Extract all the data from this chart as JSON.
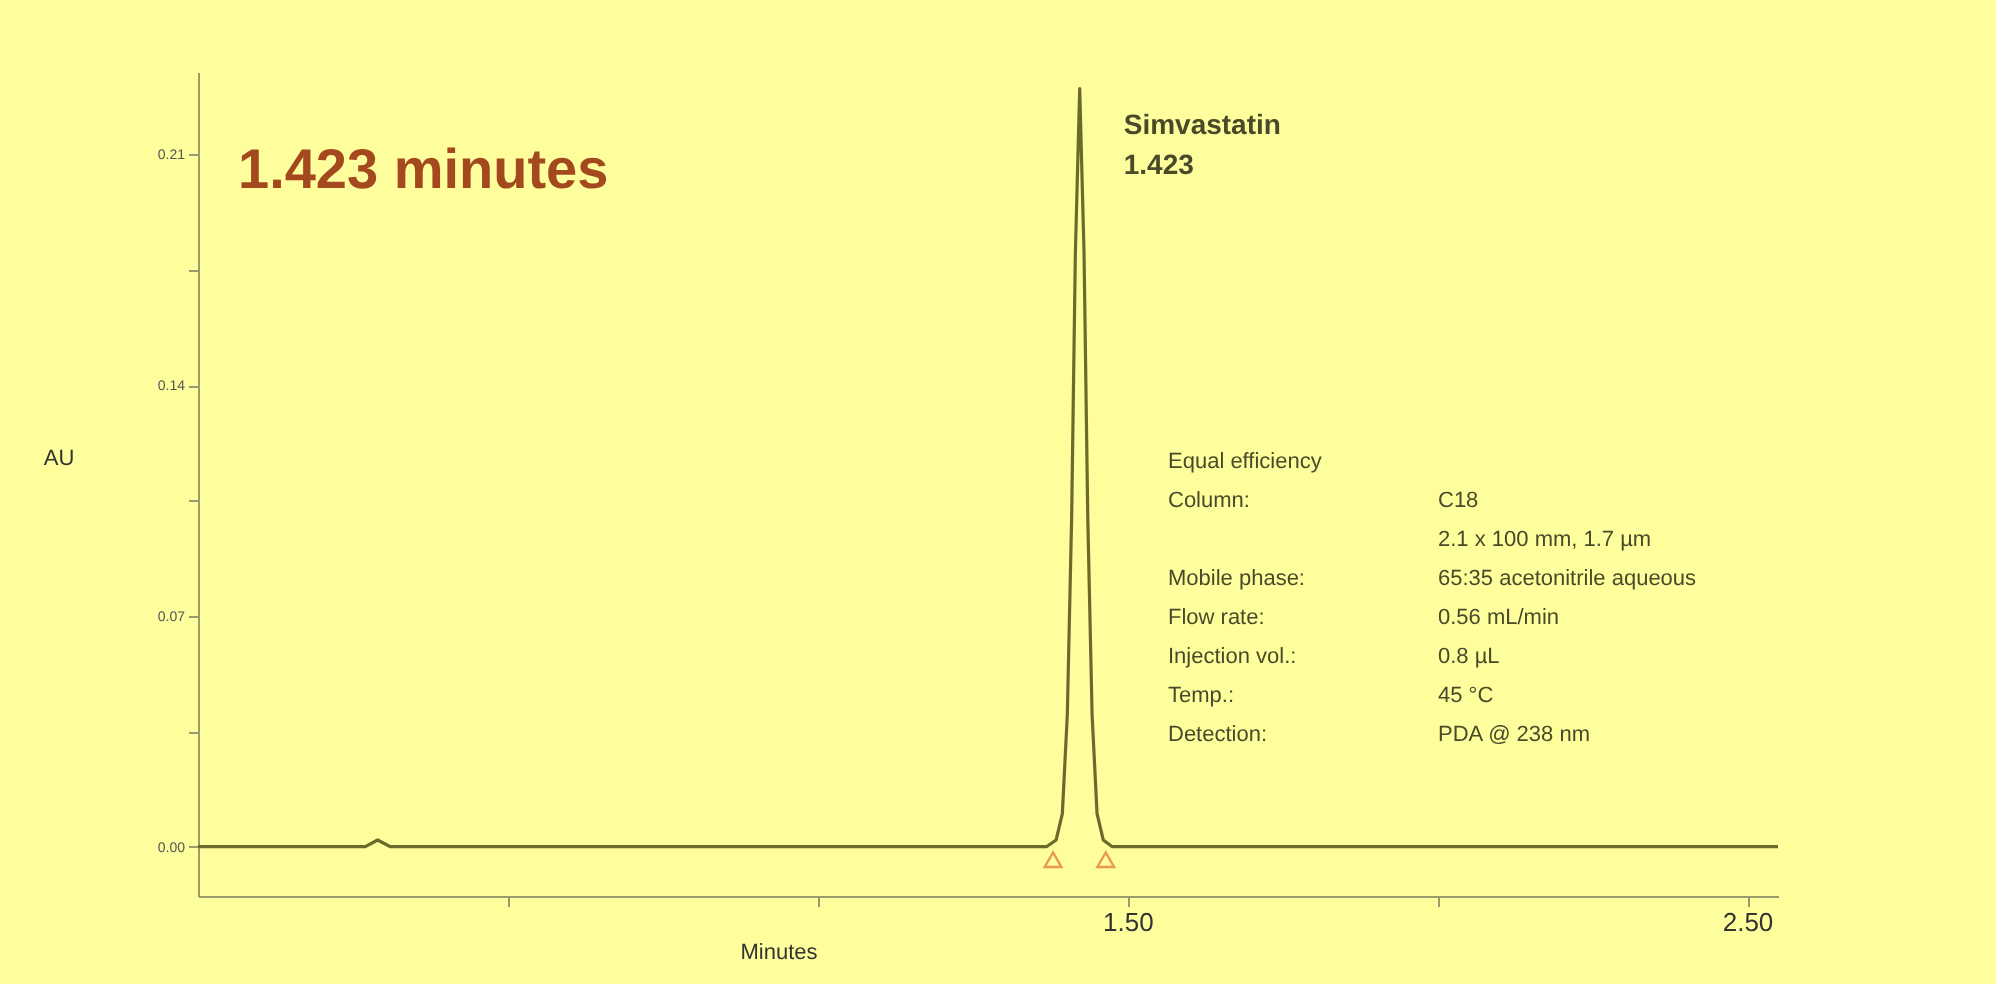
{
  "chart_data": {
    "type": "line",
    "title": "1.423 minutes",
    "xlabel": "Minutes",
    "ylabel": "AU",
    "x": [
      0,
      0.1,
      0.2,
      0.27,
      0.29,
      0.31,
      0.4,
      0.6,
      0.8,
      1.0,
      1.2,
      1.3,
      1.37,
      1.385,
      1.395,
      1.403,
      1.41,
      1.416,
      1.423,
      1.43,
      1.436,
      1.443,
      1.451,
      1.461,
      1.475,
      1.55,
      1.7,
      1.9,
      2.1,
      2.3,
      2.5,
      2.55
    ],
    "series": [
      {
        "color": "#6b6a2c",
        "line_style": "solid",
        "marker": "none",
        "values": [
          0,
          0,
          0,
          0,
          0.002,
          0,
          0,
          0,
          0,
          0,
          0,
          0,
          0,
          0.002,
          0.01,
          0.04,
          0.1,
          0.18,
          0.23,
          0.18,
          0.1,
          0.04,
          0.01,
          0.002,
          0,
          0,
          0,
          0,
          0,
          0,
          0,
          0
        ]
      },
      {
        "type": "scatter",
        "color": "#e0702c",
        "marker": "triangle",
        "x": [
          1.38,
          1.465
        ],
        "values": [
          -0.004,
          -0.004
        ]
      }
    ],
    "xlim": [
      0,
      2.55
    ],
    "xticks": [
      {
        "value": 0.5,
        "label": null
      },
      {
        "value": 1.0,
        "label": null
      },
      {
        "value": 1.5,
        "label": "1.50"
      },
      {
        "value": 2.0,
        "label": null
      },
      {
        "value": 2.5,
        "label": "2.50"
      }
    ],
    "ylim": [
      -0.015,
      0.235
    ],
    "yticks": [
      {
        "value": 0,
        "label": "0.00"
      },
      {
        "value": 0.035,
        "label": null
      },
      {
        "value": 0.07,
        "label": "0.07"
      },
      {
        "value": 0.105,
        "label": null
      },
      {
        "value": 0.14,
        "label": "0.14"
      },
      {
        "value": 0.175,
        "label": null
      },
      {
        "value": 0.21,
        "label": "0.21"
      }
    ],
    "grid": false,
    "annotations": [
      {
        "text": "Simvastatin",
        "x": 1.423,
        "y": 0.23
      },
      {
        "text": "1.423",
        "x": 1.423,
        "y": 0.23
      },
      "Equal efficiency",
      "Column:\tC18",
      "\t2.1 x 100 mm, 1.7 µm",
      "Mobile phase:\t65:35 acetonitrile aqueous",
      "Flow rate:\t0.56 mL/min",
      "Injection vol.:\t0.8 µL",
      "Temp.:\t45 °C",
      "Detection:\tPDA @ 238 nm"
    ]
  }
}
